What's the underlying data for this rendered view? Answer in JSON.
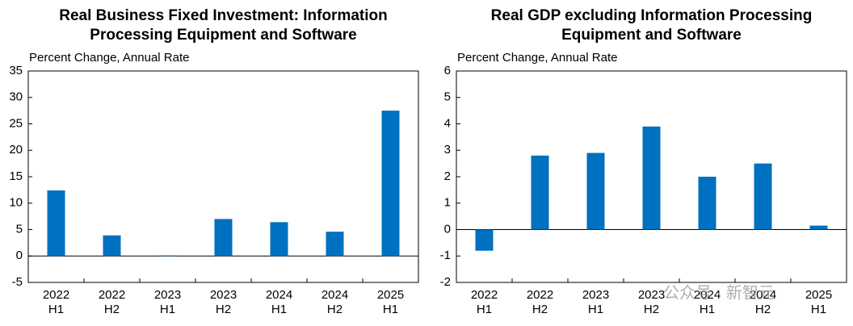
{
  "chart_data": [
    {
      "type": "bar",
      "title": [
        "Real Business Fixed Investment: Information",
        "Processing Equipment and Software"
      ],
      "y_label": "Percent Change, Annual Rate",
      "categories": [
        [
          "2022",
          "H1"
        ],
        [
          "2022",
          "H2"
        ],
        [
          "2023",
          "H1"
        ],
        [
          "2023",
          "H2"
        ],
        [
          "2024",
          "H1"
        ],
        [
          "2024",
          "H2"
        ],
        [
          "2025",
          "H1"
        ]
      ],
      "values": [
        12.4,
        3.9,
        0.1,
        7.0,
        6.4,
        4.6,
        27.5
      ],
      "color": "#0070c0",
      "ylim": [
        -5,
        35
      ],
      "yticks": [
        -5,
        0,
        5,
        10,
        15,
        20,
        25,
        30,
        35
      ]
    },
    {
      "type": "bar",
      "title": [
        "Real GDP excluding Information Processing",
        "Equipment and Software"
      ],
      "y_label": "Percent Change, Annual Rate",
      "categories": [
        [
          "2022",
          "H1"
        ],
        [
          "2022",
          "H2"
        ],
        [
          "2023",
          "H1"
        ],
        [
          "2023",
          "H2"
        ],
        [
          "2024",
          "H1"
        ],
        [
          "2024",
          "H2"
        ],
        [
          "2025",
          "H1"
        ]
      ],
      "values": [
        -0.8,
        2.8,
        2.9,
        3.9,
        2.0,
        2.5,
        0.15
      ],
      "color": "#0070c0",
      "ylim": [
        -2,
        6
      ],
      "yticks": [
        -2,
        -1,
        0,
        1,
        2,
        3,
        4,
        5,
        6
      ],
      "watermark": "公众号 · 新智元"
    }
  ]
}
